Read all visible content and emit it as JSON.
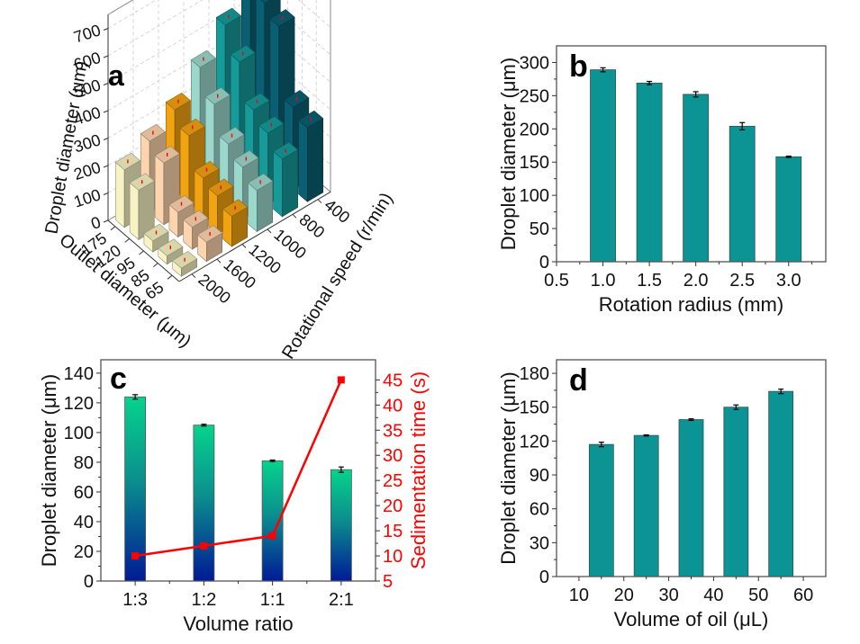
{
  "figure": {
    "panels": [
      "a",
      "b",
      "c",
      "d"
    ]
  },
  "chart_data": [
    {
      "id": "a",
      "type": "bar3d",
      "panel_label": "a",
      "zlabel": "Droplet diameter (μm)",
      "xlabel": "Outlet diameter (μm)",
      "ylabel": "Rotational speed (r/min)",
      "z_ticks": [
        "0",
        "100",
        "200",
        "300",
        "400",
        "500",
        "600",
        "700"
      ],
      "zlim": [
        0,
        750
      ],
      "outlet_diameters": [
        "175",
        "120",
        "95",
        "85",
        "65"
      ],
      "rotational_speeds": [
        "400",
        "800",
        "1000",
        "1200",
        "1600",
        "2000"
      ],
      "colors": {
        "2000": "#f7f3c4",
        "1600": "#fcd4ae",
        "1200": "#f2a312",
        "1000": "#9bd8cb",
        "800": "#169a9a",
        "400": "#0a5f72"
      },
      "series": [
        {
          "speed": "2000",
          "values": [
            210,
            180,
            40,
            30,
            30
          ]
        },
        {
          "speed": "1600",
          "values": [
            260,
            225,
            90,
            80,
            70
          ]
        },
        {
          "speed": "1200",
          "values": [
            320,
            270,
            160,
            140,
            110
          ]
        },
        {
          "speed": "1000",
          "values": [
            420,
            330,
            230,
            190,
            150
          ]
        },
        {
          "speed": "800",
          "values": [
            520,
            430,
            300,
            260,
            210
          ]
        },
        {
          "speed": "400",
          "values": [
            700,
            590,
            550,
            300,
            270
          ]
        }
      ],
      "error_bar_color": "#ff0000"
    },
    {
      "id": "b",
      "type": "bar",
      "panel_label": "b",
      "xlabel": "Rotation radius (mm)",
      "ylabel": "Droplet diameter (μm)",
      "x_ticks": [
        "0.5",
        "1.0",
        "1.5",
        "2.0",
        "2.5",
        "3.0"
      ],
      "x_tick_values": [
        0.5,
        1.0,
        1.5,
        2.0,
        2.5,
        3.0
      ],
      "xlim": [
        0.5,
        3.4
      ],
      "y_ticks": [
        "0",
        "50",
        "100",
        "150",
        "200",
        "250",
        "300"
      ],
      "y_tick_values": [
        0,
        50,
        100,
        150,
        200,
        250,
        300
      ],
      "ylim": [
        0,
        325
      ],
      "x": [
        1.0,
        1.5,
        2.0,
        2.5,
        3.0
      ],
      "values": [
        289,
        269,
        252,
        204,
        158
      ],
      "errors": [
        3,
        2.5,
        4,
        5.5,
        1
      ],
      "bar_color": "#0c9494"
    },
    {
      "id": "c",
      "type": "bar+line",
      "panel_label": "c",
      "xlabel": "Volume ratio",
      "ylabel": "Droplet diameter (μm)",
      "y2label": "Sedimentation time (s)",
      "categories": [
        "1:3",
        "1:2",
        "1:1",
        "2:1"
      ],
      "y_ticks": [
        "0",
        "20",
        "40",
        "60",
        "80",
        "100",
        "120",
        "140"
      ],
      "y_tick_values": [
        0,
        20,
        40,
        60,
        80,
        100,
        120,
        140
      ],
      "ylim": [
        0,
        149
      ],
      "y2_ticks": [
        "5",
        "10",
        "15",
        "20",
        "25",
        "30",
        "35",
        "40",
        "45"
      ],
      "y2_tick_values": [
        5,
        10,
        15,
        20,
        25,
        30,
        35,
        40,
        45
      ],
      "y2lim": [
        5,
        49
      ],
      "series": [
        {
          "name": "Droplet diameter",
          "axis": "left",
          "type": "bar",
          "values": [
            124,
            105,
            81,
            75
          ],
          "errors": [
            1.5,
            0.6,
            0.5,
            1.8
          ]
        },
        {
          "name": "Sedimentation time",
          "axis": "right",
          "type": "line",
          "values": [
            10,
            12,
            14,
            45
          ],
          "color": "#ff0000"
        }
      ],
      "bar_gradient": [
        "#06d38c",
        "#0b8f8e",
        "#001a96"
      ]
    },
    {
      "id": "d",
      "type": "bar",
      "panel_label": "d",
      "xlabel": "Volume of oil (μL)",
      "ylabel": "Droplet diameter (μm)",
      "x_ticks": [
        "10",
        "20",
        "30",
        "40",
        "50",
        "60"
      ],
      "x_tick_values": [
        10,
        20,
        30,
        40,
        50,
        60
      ],
      "xlim": [
        5,
        65
      ],
      "y_ticks": [
        "0",
        "30",
        "60",
        "90",
        "120",
        "150",
        "180"
      ],
      "y_tick_values": [
        0,
        30,
        60,
        90,
        120,
        150,
        180
      ],
      "ylim": [
        0,
        192
      ],
      "x": [
        15,
        25,
        35,
        45,
        55
      ],
      "values": [
        117,
        125,
        139,
        150,
        164
      ],
      "errors": [
        2,
        0.5,
        0.7,
        2,
        2
      ],
      "bar_color": "#0c9494"
    }
  ]
}
